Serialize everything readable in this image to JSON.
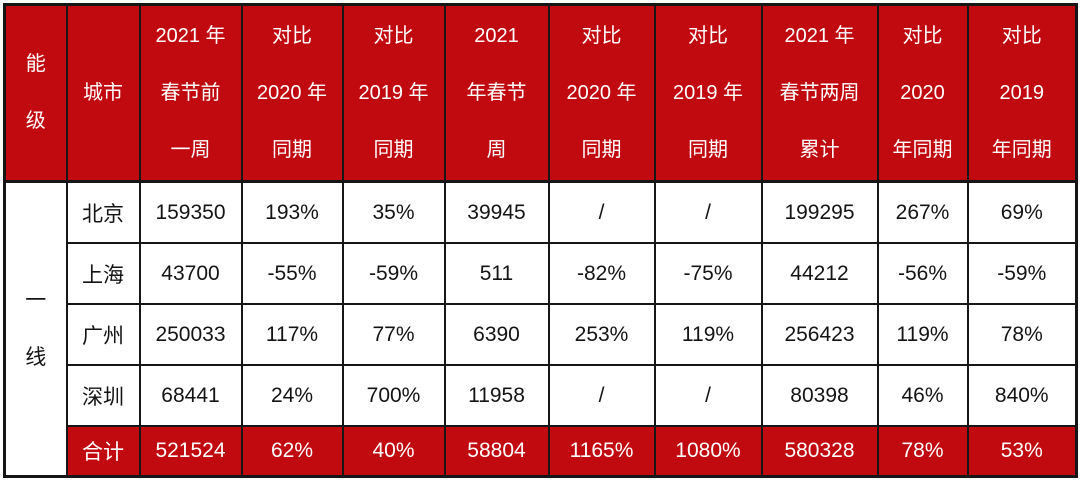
{
  "colors": {
    "red": "#c00a10",
    "border": "#161616",
    "text_dark": "#141414",
    "text_light": "#ffffff"
  },
  "table": {
    "header": [
      {
        "lines": [
          "能",
          "级"
        ]
      },
      {
        "lines": [
          "城市"
        ]
      },
      {
        "lines": [
          "2021 年",
          "春节前",
          "一周"
        ]
      },
      {
        "lines": [
          "对比",
          "2020 年",
          "同期"
        ]
      },
      {
        "lines": [
          "对比",
          "2019 年",
          "同期"
        ]
      },
      {
        "lines": [
          "2021",
          "年春节",
          "周"
        ]
      },
      {
        "lines": [
          "对比",
          "2020 年",
          "同期"
        ]
      },
      {
        "lines": [
          "对比",
          "2019 年",
          "同期"
        ]
      },
      {
        "lines": [
          "2021 年",
          "春节两周",
          "累计"
        ]
      },
      {
        "lines": [
          "对比",
          "2020",
          "年同期"
        ]
      },
      {
        "lines": [
          "对比",
          "2019",
          "年同期"
        ]
      }
    ],
    "tier": {
      "lines": [
        "一",
        "线"
      ]
    },
    "rows": [
      {
        "city": "北京",
        "values": [
          "159350",
          "193%",
          "35%",
          "39945",
          "/",
          "/",
          "199295",
          "267%",
          "69%"
        ]
      },
      {
        "city": "上海",
        "values": [
          "43700",
          "-55%",
          "-59%",
          "511",
          "-82%",
          "-75%",
          "44212",
          "-56%",
          "-59%"
        ]
      },
      {
        "city": "广州",
        "values": [
          "250033",
          "117%",
          "77%",
          "6390",
          "253%",
          "119%",
          "256423",
          "119%",
          "78%"
        ]
      },
      {
        "city": "深圳",
        "values": [
          "68441",
          "24%",
          "700%",
          "11958",
          "/",
          "/",
          "80398",
          "46%",
          "840%"
        ]
      }
    ],
    "total": {
      "label": "合计",
      "values": [
        "521524",
        "62%",
        "40%",
        "58804",
        "1165%",
        "1080%",
        "580328",
        "78%",
        "53%"
      ]
    }
  },
  "chart_data": {
    "type": "table",
    "columns": [
      "能级",
      "城市",
      "2021年春节前一周",
      "对比2020年同期",
      "对比2019年同期",
      "2021年春节周",
      "对比2020年同期",
      "对比2019年同期",
      "2021年春节两周累计",
      "对比2020年同期",
      "对比2019年同期"
    ],
    "rows": [
      [
        "一线",
        "北京",
        159350,
        "193%",
        "35%",
        39945,
        "/",
        "/",
        199295,
        "267%",
        "69%"
      ],
      [
        "一线",
        "上海",
        43700,
        "-55%",
        "-59%",
        511,
        "-82%",
        "-75%",
        44212,
        "-56%",
        "-59%"
      ],
      [
        "一线",
        "广州",
        250033,
        "117%",
        "77%",
        6390,
        "253%",
        "119%",
        256423,
        "119%",
        "78%"
      ],
      [
        "一线",
        "深圳",
        68441,
        "24%",
        "700%",
        11958,
        "/",
        "/",
        80398,
        "46%",
        "840%"
      ],
      [
        "一线",
        "合计",
        521524,
        "62%",
        "40%",
        58804,
        "1165%",
        "1080%",
        580328,
        "78%",
        "53%"
      ]
    ]
  }
}
